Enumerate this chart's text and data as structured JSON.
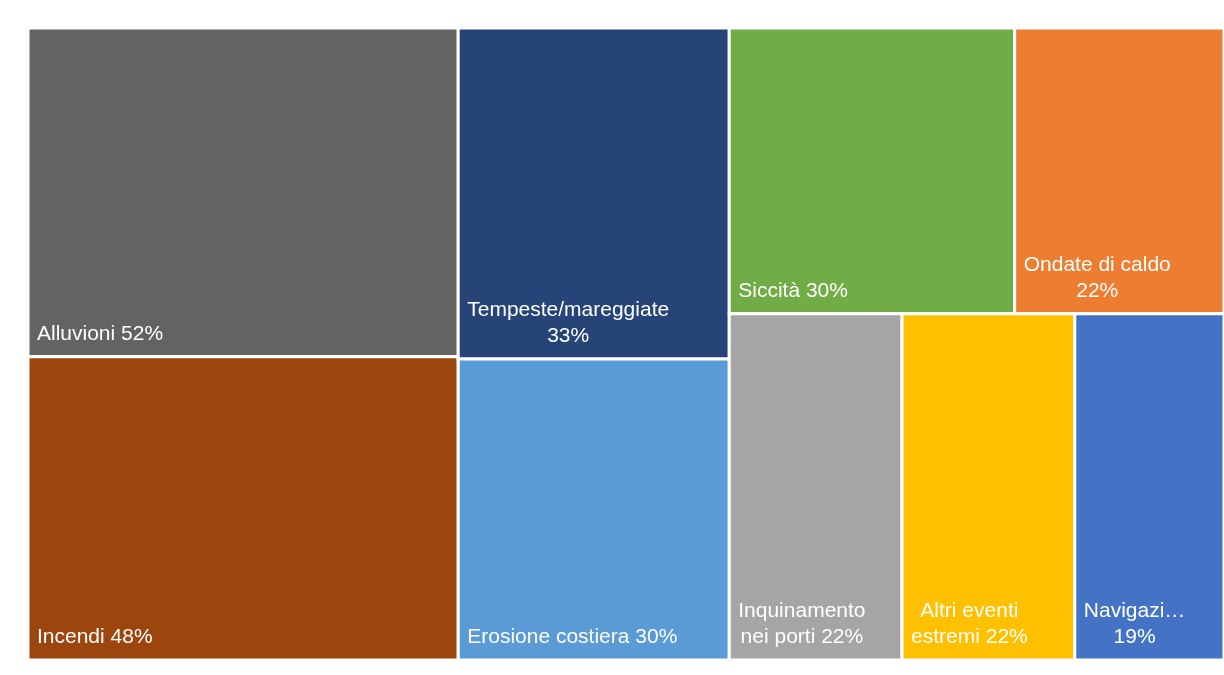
{
  "chart_data": {
    "type": "other",
    "categories": [
      "Alluvioni",
      "Incendi",
      "Tempeste/mareggiate",
      "Erosione costiera",
      "Siccità",
      "Ondate di caldo",
      "Inquinamento nei porti",
      "Altri eventi estremi",
      "Navigazi…"
    ],
    "values": [
      52,
      48,
      33,
      30,
      30,
      22,
      22,
      22,
      19
    ],
    "value_labels": [
      "52%",
      "48%",
      "33%",
      "30%",
      "30%",
      "22%",
      "22%",
      "22%",
      "19%"
    ],
    "colors": [
      "#636363",
      "#9c460d",
      "#264478",
      "#5b9bd5",
      "#70ad47",
      "#ed7d31",
      "#a5a5a5",
      "#ffc000",
      "#4472c4"
    ]
  }
}
